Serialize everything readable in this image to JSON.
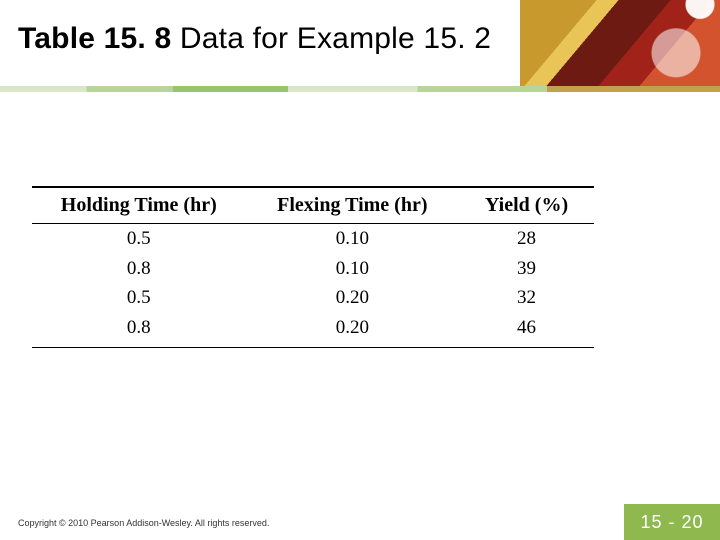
{
  "title": {
    "number": "Table 15. 8",
    "desc": "  Data for Example 15. 2"
  },
  "table": {
    "type": "table",
    "columns": [
      "Holding Time (hr)",
      "Flexing Time (hr)",
      "Yield (%)"
    ],
    "column_widths_pct": [
      38,
      38,
      24
    ],
    "rows": [
      [
        "0.5",
        "0.10",
        "28"
      ],
      [
        "0.8",
        "0.10",
        "39"
      ],
      [
        "0.5",
        "0.20",
        "32"
      ],
      [
        "0.8",
        "0.20",
        "46"
      ]
    ],
    "header_fontsize": 20,
    "cell_fontsize": 19,
    "rule_color": "#000000",
    "top_rule_width": 2,
    "mid_rule_width": 1.5,
    "bottom_rule_width": 1.5,
    "font_family": "Times New Roman"
  },
  "footer": {
    "copyright": "Copyright © 2010 Pearson Addison-Wesley. All rights reserved."
  },
  "page": {
    "label": "15 - 20",
    "bg_color": "#8fb94f",
    "text_color": "#ffffff"
  },
  "accent_band_colors": [
    "#d9e7c9",
    "#b8d49a",
    "#96c56a",
    "#bfa24a"
  ],
  "corner_deco_colors": [
    "#7b1c14",
    "#a02218",
    "#d3532e",
    "#c89a2e",
    "#e8c556"
  ],
  "background_color": "#ffffff"
}
